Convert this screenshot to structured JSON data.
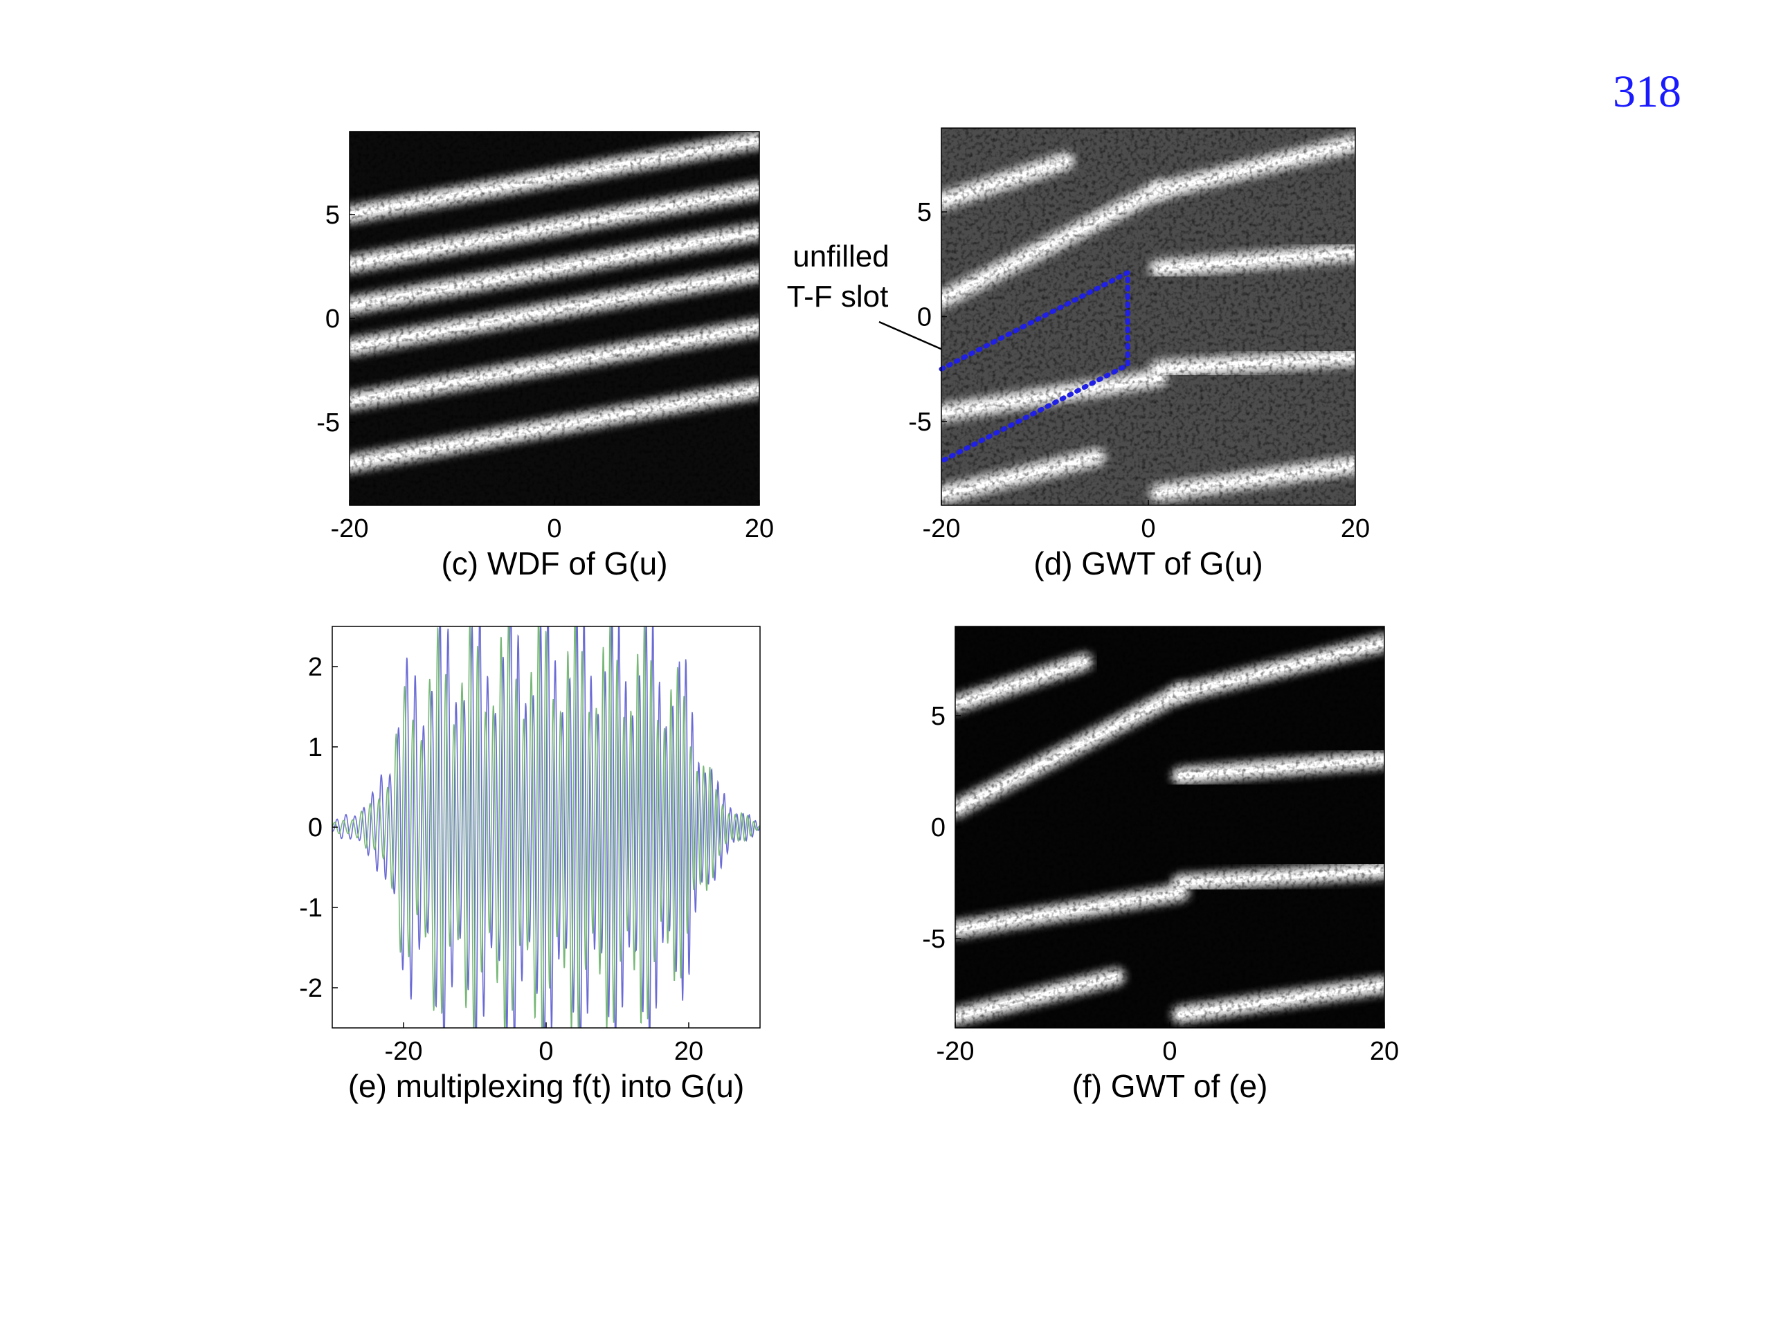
{
  "page": {
    "number": "318"
  },
  "annotation": {
    "line1": "unfilled",
    "line2": "T-F slot"
  },
  "chart_data": [
    {
      "id": "c",
      "type": "heatmap",
      "caption": "(c) WDF of G(u)",
      "xlim": [
        -20,
        20
      ],
      "ylim": [
        -9,
        9
      ],
      "x_ticks": [
        "-20",
        "0",
        "20"
      ],
      "y_ticks": [
        "5",
        "0",
        "-5"
      ],
      "colormap": "gray",
      "background": "#0b0b0b",
      "bands": [
        {
          "y_start": 5.0,
          "slope": 0.09,
          "x_from": -20,
          "x_to": 20
        },
        {
          "y_start": 2.6,
          "slope": 0.09,
          "x_from": -20,
          "x_to": 20
        },
        {
          "y_start": 0.6,
          "slope": 0.09,
          "x_from": -20,
          "x_to": 20
        },
        {
          "y_start": -1.4,
          "slope": 0.09,
          "x_from": -20,
          "x_to": 20
        },
        {
          "y_start": -4.0,
          "slope": 0.09,
          "x_from": -20,
          "x_to": 20
        },
        {
          "y_start": -7.0,
          "slope": 0.09,
          "x_from": -20,
          "x_to": 20
        }
      ]
    },
    {
      "id": "d",
      "type": "heatmap",
      "caption": "(d) GWT of G(u)",
      "xlim": [
        -20,
        20
      ],
      "ylim": [
        -9,
        9
      ],
      "x_ticks": [
        "-20",
        "0",
        "20"
      ],
      "y_ticks": [
        "5",
        "0",
        "-5"
      ],
      "colormap": "gray",
      "background": "#4d4d4d",
      "bands": [
        {
          "y_start": 5.5,
          "slope": 0.16,
          "x_from": -20,
          "x_to": -8
        },
        {
          "y_start": 0.8,
          "slope": 0.25,
          "x_from": -20,
          "x_to": 1
        },
        {
          "y_start": 6.0,
          "slope": 0.12,
          "x_from": 1,
          "x_to": 20
        },
        {
          "y_start": 2.3,
          "slope": 0.04,
          "x_from": 1,
          "x_to": 20
        },
        {
          "y_start": -4.6,
          "slope": 0.08,
          "x_from": -20,
          "x_to": 1
        },
        {
          "y_start": -2.5,
          "slope": 0.03,
          "x_from": 1,
          "x_to": 20
        },
        {
          "y_start": -8.5,
          "slope": 0.12,
          "x_from": -20,
          "x_to": -5
        },
        {
          "y_start": -8.4,
          "slope": 0.07,
          "x_from": 1,
          "x_to": 20
        }
      ],
      "highlight_region": {
        "points": [
          [
            -20,
            -2.5
          ],
          [
            -2,
            2.1
          ],
          [
            -2,
            -2.3
          ],
          [
            -20,
            -6.9
          ]
        ],
        "color": "#1f1fe6",
        "style": "dotted"
      }
    },
    {
      "id": "e",
      "type": "line",
      "caption": "(e) multiplexing f(t) into G(u)",
      "xlim": [
        -30,
        30
      ],
      "ylim": [
        -2.5,
        2.5
      ],
      "x_ticks": [
        "-20",
        "0",
        "20"
      ],
      "y_ticks": [
        "2",
        "1",
        "0",
        "-1",
        "-2"
      ],
      "series": [
        {
          "color": "#6a6ad6",
          "envelope": [
            [
              -30,
              0.05
            ],
            [
              -24,
              0.4
            ],
            [
              -20,
              1.8
            ],
            [
              -15,
              2.4
            ],
            [
              0,
              2.5
            ],
            [
              15,
              2.4
            ],
            [
              20,
              1.8
            ],
            [
              24,
              0.5
            ],
            [
              30,
              0.02
            ]
          ]
        },
        {
          "color": "#77b877",
          "envelope": [
            [
              -30,
              0.04
            ],
            [
              -24,
              0.3
            ],
            [
              -20,
              1.6
            ],
            [
              -15,
              2.3
            ],
            [
              0,
              2.5
            ],
            [
              15,
              2.3
            ],
            [
              20,
              1.6
            ],
            [
              24,
              0.4
            ],
            [
              30,
              0.02
            ]
          ]
        }
      ]
    },
    {
      "id": "f",
      "type": "heatmap",
      "caption": "(f) GWT of (e)",
      "xlim": [
        -20,
        20
      ],
      "ylim": [
        -9,
        9
      ],
      "x_ticks": [
        "-20",
        "0",
        "20"
      ],
      "y_ticks": [
        "5",
        "0",
        "-5"
      ],
      "colormap": "gray",
      "background": "#050505",
      "bands": [
        {
          "y_start": 5.5,
          "slope": 0.16,
          "x_from": -20,
          "x_to": -8
        },
        {
          "y_start": 0.8,
          "slope": 0.25,
          "x_from": -20,
          "x_to": 1
        },
        {
          "y_start": 6.0,
          "slope": 0.12,
          "x_from": 1,
          "x_to": 20
        },
        {
          "y_start": 2.3,
          "slope": 0.04,
          "x_from": 1,
          "x_to": 20
        },
        {
          "y_start": -4.6,
          "slope": 0.08,
          "x_from": -20,
          "x_to": 1
        },
        {
          "y_start": -2.5,
          "slope": 0.03,
          "x_from": 1,
          "x_to": 20
        },
        {
          "y_start": -8.5,
          "slope": 0.12,
          "x_from": -20,
          "x_to": -5
        },
        {
          "y_start": -8.4,
          "slope": 0.07,
          "x_from": 1,
          "x_to": 20
        }
      ]
    }
  ]
}
